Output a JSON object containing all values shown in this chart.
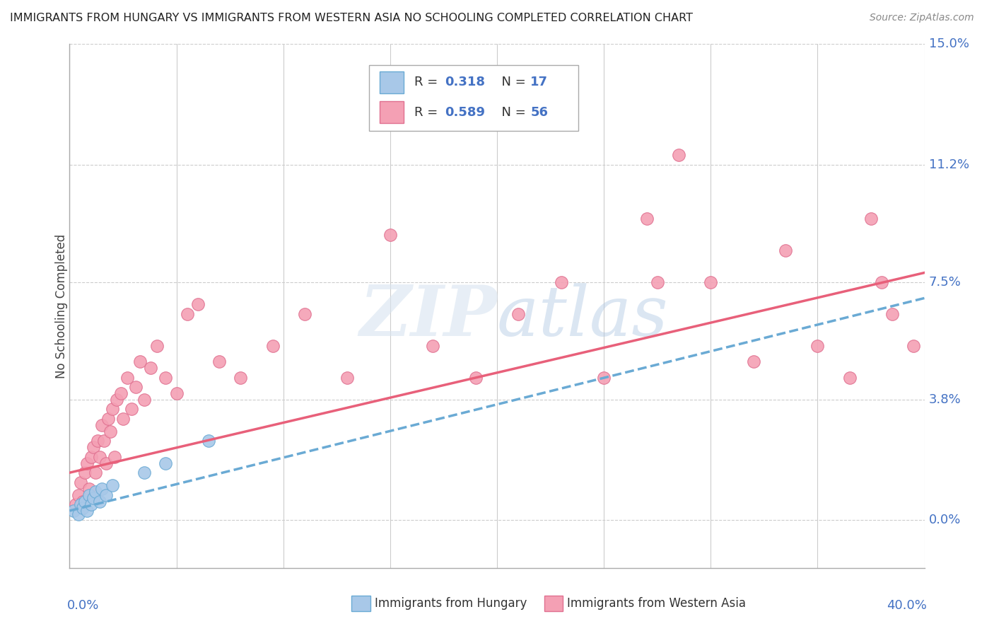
{
  "title": "IMMIGRANTS FROM HUNGARY VS IMMIGRANTS FROM WESTERN ASIA NO SCHOOLING COMPLETED CORRELATION CHART",
  "source": "Source: ZipAtlas.com",
  "ylabel": "No Schooling Completed",
  "ytick_values": [
    0.0,
    3.8,
    7.5,
    11.2,
    15.0
  ],
  "ytick_labels": [
    "0.0%",
    "3.8%",
    "7.5%",
    "11.2%",
    "15.0%"
  ],
  "xlim": [
    0.0,
    40.0
  ],
  "ylim": [
    -1.5,
    15.0
  ],
  "legend_label1": "Immigrants from Hungary",
  "legend_label2": "Immigrants from Western Asia",
  "color_hungary": "#a8c8e8",
  "color_hungary_edge": "#6aaad4",
  "color_wa": "#f4a0b4",
  "color_wa_edge": "#e07090",
  "color_blue": "#4472c4",
  "color_pink_line": "#e8607a",
  "color_blue_line": "#6aaad4",
  "hungary_x": [
    0.2,
    0.4,
    0.5,
    0.6,
    0.7,
    0.8,
    0.9,
    1.0,
    1.1,
    1.2,
    1.4,
    1.5,
    1.7,
    2.0,
    3.5,
    4.5,
    6.5
  ],
  "hungary_y": [
    0.3,
    0.2,
    0.5,
    0.4,
    0.6,
    0.3,
    0.8,
    0.5,
    0.7,
    0.9,
    0.6,
    1.0,
    0.8,
    1.1,
    1.5,
    1.8,
    2.5
  ],
  "wa_x": [
    0.3,
    0.4,
    0.5,
    0.6,
    0.7,
    0.8,
    0.9,
    1.0,
    1.1,
    1.2,
    1.3,
    1.4,
    1.5,
    1.6,
    1.7,
    1.8,
    1.9,
    2.0,
    2.1,
    2.2,
    2.4,
    2.5,
    2.7,
    2.9,
    3.1,
    3.3,
    3.5,
    3.8,
    4.1,
    4.5,
    5.0,
    5.5,
    6.0,
    7.0,
    8.0,
    9.5,
    11.0,
    13.0,
    15.0,
    17.0,
    19.0,
    21.0,
    23.0,
    25.0,
    27.0,
    28.5,
    30.0,
    32.0,
    33.5,
    35.0,
    36.5,
    37.5,
    38.5,
    39.5,
    27.5,
    38.0
  ],
  "wa_y": [
    0.5,
    0.8,
    1.2,
    0.6,
    1.5,
    1.8,
    1.0,
    2.0,
    2.3,
    1.5,
    2.5,
    2.0,
    3.0,
    2.5,
    1.8,
    3.2,
    2.8,
    3.5,
    2.0,
    3.8,
    4.0,
    3.2,
    4.5,
    3.5,
    4.2,
    5.0,
    3.8,
    4.8,
    5.5,
    4.5,
    4.0,
    6.5,
    6.8,
    5.0,
    4.5,
    5.5,
    6.5,
    4.5,
    9.0,
    5.5,
    4.5,
    6.5,
    7.5,
    4.5,
    9.5,
    11.5,
    7.5,
    5.0,
    8.5,
    5.5,
    4.5,
    9.5,
    6.5,
    5.5,
    7.5,
    7.5
  ],
  "hungary_line_x": [
    0.0,
    40.0
  ],
  "hungary_line_y": [
    0.3,
    7.0
  ],
  "wa_line_x": [
    0.0,
    40.0
  ],
  "wa_line_y": [
    1.5,
    7.8
  ]
}
